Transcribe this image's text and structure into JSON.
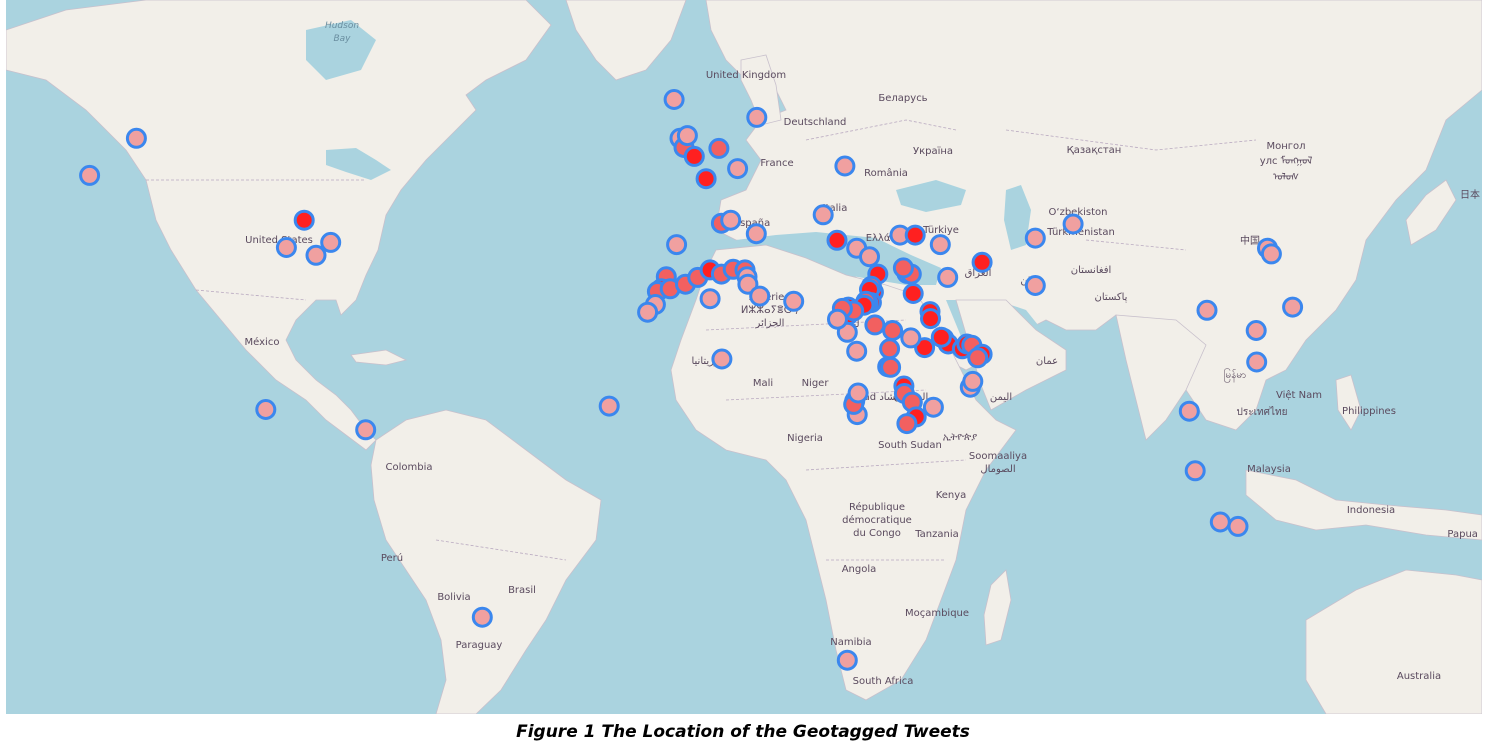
{
  "caption": "Figure 1 The Location of the Geotagged Tweets",
  "colors": {
    "ocean": "#aad3df",
    "land": "#f2efe9",
    "marker_stroke": "#3b87ee",
    "marker_fill_light": "#f0a0a0",
    "marker_fill_dense": "#ff2020"
  },
  "country_labels": [
    {
      "id": "united-states",
      "text": "United States"
    },
    {
      "id": "mexico",
      "text": "México"
    },
    {
      "id": "colombia",
      "text": "Colombia"
    },
    {
      "id": "peru",
      "text": "Perú"
    },
    {
      "id": "bolivia",
      "text": "Bolivia"
    },
    {
      "id": "brasil",
      "text": "Brasil"
    },
    {
      "id": "paraguay",
      "text": "Paraguay"
    },
    {
      "id": "united-kingdom",
      "text": "United Kingdom"
    },
    {
      "id": "deutschland",
      "text": "Deutschland"
    },
    {
      "id": "france",
      "text": "France"
    },
    {
      "id": "espana",
      "text": "España"
    },
    {
      "id": "italia",
      "text": "Italia"
    },
    {
      "id": "ellas",
      "text": "Ελλάς"
    },
    {
      "id": "romania",
      "text": "România"
    },
    {
      "id": "belarus",
      "text": "Беларусь"
    },
    {
      "id": "ukraina",
      "text": "Україна"
    },
    {
      "id": "turkiye",
      "text": "Türkiye"
    },
    {
      "id": "kazakhstan",
      "text": "Қазақстан"
    },
    {
      "id": "uzbekiston",
      "text": "O‘zbekiston"
    },
    {
      "id": "turkmenistan",
      "text": "Türkmenistan"
    },
    {
      "id": "mongol",
      "text": "Монгол"
    },
    {
      "id": "mongol-2",
      "text": "улс ᠮᠣᠩᠭᠣᠯ"
    },
    {
      "id": "mongol-3",
      "text": "ᠤᠯᠤᠰ"
    },
    {
      "id": "nihon",
      "text": "日本"
    },
    {
      "id": "zhongguo",
      "text": "中国"
    },
    {
      "id": "afghanistan",
      "text": "افغانستان"
    },
    {
      "id": "iran",
      "text": "ایران"
    },
    {
      "id": "pakistan",
      "text": "پاکستان"
    },
    {
      "id": "algerie",
      "text": "Algérie /"
    },
    {
      "id": "algerie-2",
      "text": "ⵍⵣⵣⴰⵢⴻⵔ /"
    },
    {
      "id": "algerie-3",
      "text": "الجزائر"
    },
    {
      "id": "libya",
      "text": "ليبيا"
    },
    {
      "id": "mauritania",
      "text": "موريتانيا"
    },
    {
      "id": "mali",
      "text": "Mali"
    },
    {
      "id": "niger",
      "text": "Niger"
    },
    {
      "id": "tchad",
      "text": "Tchad تشاد"
    },
    {
      "id": "sudan",
      "text": "السودان"
    },
    {
      "id": "nigeria",
      "text": "Nigeria"
    },
    {
      "id": "south-sudan",
      "text": "South Sudan"
    },
    {
      "id": "ethiopia",
      "text": "ኢትዮጵያ"
    },
    {
      "id": "somaaliya",
      "text": "Soomaaliya"
    },
    {
      "id": "somaaliya-2",
      "text": "الصومال"
    },
    {
      "id": "kenya",
      "text": "Kenya"
    },
    {
      "id": "rdc",
      "text": "République"
    },
    {
      "id": "rdc-2",
      "text": "démocratique"
    },
    {
      "id": "rdc-3",
      "text": "du Congo"
    },
    {
      "id": "tanzania",
      "text": "Tanzania"
    },
    {
      "id": "angola",
      "text": "Angola"
    },
    {
      "id": "mocambique",
      "text": "Moçambique"
    },
    {
      "id": "namibia",
      "text": "Namibia"
    },
    {
      "id": "south-africa",
      "text": "South Africa"
    },
    {
      "id": "myanmar",
      "text": "မြန်မာ"
    },
    {
      "id": "viet-nam",
      "text": "Việt Nam"
    },
    {
      "id": "thailand",
      "text": "ประเทศไทย"
    },
    {
      "id": "philippines",
      "text": "Philippines"
    },
    {
      "id": "malaysia",
      "text": "Malaysia"
    },
    {
      "id": "indonesia",
      "text": "Indonesia"
    },
    {
      "id": "papua",
      "text": "Papua N"
    },
    {
      "id": "australia",
      "text": "Australia"
    },
    {
      "id": "hudson-bay",
      "text": "Hudson"
    },
    {
      "id": "hudson-bay-2",
      "text": "Bay"
    },
    {
      "id": "iraq",
      "text": "العراق"
    },
    {
      "id": "oman",
      "text": "عمان"
    },
    {
      "id": "yemen",
      "text": "اليمن"
    }
  ],
  "tweet_markers": [
    {
      "lon": -123.0,
      "lat": 49.3,
      "density": "single"
    },
    {
      "lon": -113.5,
      "lat": 53.5,
      "density": "single"
    },
    {
      "lon": -79.4,
      "lat": 43.7,
      "density": "dense"
    },
    {
      "lon": -83.0,
      "lat": 40.0,
      "density": "single"
    },
    {
      "lon": -74.0,
      "lat": 40.7,
      "density": "single"
    },
    {
      "lon": -77.0,
      "lat": 38.9,
      "density": "single"
    },
    {
      "lon": -87.2,
      "lat": 14.1,
      "density": "single"
    },
    {
      "lon": -66.9,
      "lat": 10.5,
      "density": "single"
    },
    {
      "lon": -43.2,
      "lat": -22.9,
      "density": "single"
    },
    {
      "lon": -17.4,
      "lat": 14.7,
      "density": "single"
    },
    {
      "lon": -4.2,
      "lat": 57.5,
      "density": "single"
    },
    {
      "lon": -3.0,
      "lat": 53.5,
      "density": "single"
    },
    {
      "lon": -2.2,
      "lat": 52.5,
      "density": "medium"
    },
    {
      "lon": -1.5,
      "lat": 53.8,
      "density": "single"
    },
    {
      "lon": -0.1,
      "lat": 51.5,
      "density": "dense"
    },
    {
      "lon": 4.9,
      "lat": 52.4,
      "density": "medium"
    },
    {
      "lon": 2.3,
      "lat": 48.9,
      "density": "dense"
    },
    {
      "lon": 8.7,
      "lat": 50.1,
      "density": "single"
    },
    {
      "lon": 12.6,
      "lat": 55.7,
      "density": "single"
    },
    {
      "lon": 5.4,
      "lat": 43.3,
      "density": "medium"
    },
    {
      "lon": 7.3,
      "lat": 43.7,
      "density": "single"
    },
    {
      "lon": 12.5,
      "lat": 41.9,
      "density": "single"
    },
    {
      "lon": 26.1,
      "lat": 44.4,
      "density": "single"
    },
    {
      "lon": 30.5,
      "lat": 50.4,
      "density": "single"
    },
    {
      "lon": -3.7,
      "lat": 40.4,
      "density": "single"
    },
    {
      "lon": -5.8,
      "lat": 35.8,
      "density": "medium"
    },
    {
      "lon": -6.8,
      "lat": 34.0,
      "density": "dense"
    },
    {
      "lon": -7.6,
      "lat": 33.6,
      "density": "medium"
    },
    {
      "lon": -8.0,
      "lat": 31.6,
      "density": "single"
    },
    {
      "lon": -9.6,
      "lat": 30.4,
      "density": "single"
    },
    {
      "lon": -5.0,
      "lat": 34.0,
      "density": "medium"
    },
    {
      "lon": -1.9,
      "lat": 34.7,
      "density": "medium"
    },
    {
      "lon": 0.6,
      "lat": 35.7,
      "density": "medium"
    },
    {
      "lon": 3.1,
      "lat": 36.8,
      "density": "dense"
    },
    {
      "lon": 5.4,
      "lat": 36.2,
      "density": "medium"
    },
    {
      "lon": 7.8,
      "lat": 36.9,
      "density": "medium"
    },
    {
      "lon": 10.2,
      "lat": 36.8,
      "density": "medium"
    },
    {
      "lon": 10.6,
      "lat": 35.8,
      "density": "single"
    },
    {
      "lon": 10.8,
      "lat": 34.7,
      "density": "single"
    },
    {
      "lon": 13.2,
      "lat": 32.9,
      "density": "single"
    },
    {
      "lon": 20.1,
      "lat": 32.1,
      "density": "single"
    },
    {
      "lon": 3.1,
      "lat": 32.5,
      "density": "single"
    },
    {
      "lon": 5.5,
      "lat": 22.8,
      "density": "single"
    },
    {
      "lon": 28.9,
      "lat": 41.0,
      "density": "dense"
    },
    {
      "lon": 32.9,
      "lat": 39.9,
      "density": "single"
    },
    {
      "lon": 35.5,
      "lat": 38.7,
      "density": "single"
    },
    {
      "lon": 41.7,
      "lat": 41.7,
      "density": "single"
    },
    {
      "lon": 44.8,
      "lat": 41.7,
      "density": "dense"
    },
    {
      "lon": 49.9,
      "lat": 40.4,
      "density": "single"
    },
    {
      "lon": 58.4,
      "lat": 37.9,
      "density": "dense"
    },
    {
      "lon": 69.2,
      "lat": 41.3,
      "density": "single"
    },
    {
      "lon": 69.2,
      "lat": 34.5,
      "density": "single"
    },
    {
      "lon": 37.2,
      "lat": 36.2,
      "density": "dense"
    },
    {
      "lon": 36.3,
      "lat": 33.5,
      "density": "dense"
    },
    {
      "lon": 35.9,
      "lat": 34.4,
      "density": "medium"
    },
    {
      "lon": 35.5,
      "lat": 33.9,
      "density": "dense"
    },
    {
      "lon": 35.9,
      "lat": 31.9,
      "density": "dense"
    },
    {
      "lon": 35.2,
      "lat": 31.8,
      "density": "dense"
    },
    {
      "lon": 34.8,
      "lat": 32.1,
      "density": "medium"
    },
    {
      "lon": 34.4,
      "lat": 31.5,
      "density": "dense"
    },
    {
      "lon": 31.2,
      "lat": 31.2,
      "density": "dense"
    },
    {
      "lon": 31.2,
      "lat": 30.0,
      "density": "dense"
    },
    {
      "lon": 32.3,
      "lat": 30.6,
      "density": "medium"
    },
    {
      "lon": 30.0,
      "lat": 31.0,
      "density": "medium"
    },
    {
      "lon": 31.0,
      "lat": 27.2,
      "density": "single"
    },
    {
      "lon": 32.9,
      "lat": 24.1,
      "density": "single"
    },
    {
      "lon": 29.0,
      "lat": 29.3,
      "density": "single"
    },
    {
      "lon": 44.4,
      "lat": 33.3,
      "density": "dense"
    },
    {
      "lon": 43.1,
      "lat": 36.3,
      "density": "medium"
    },
    {
      "lon": 44.0,
      "lat": 36.2,
      "density": "medium"
    },
    {
      "lon": 42.4,
      "lat": 37.1,
      "density": "medium"
    },
    {
      "lon": 47.8,
      "lat": 30.5,
      "density": "dense"
    },
    {
      "lon": 47.9,
      "lat": 29.4,
      "density": "dense"
    },
    {
      "lon": 51.4,
      "lat": 35.7,
      "density": "single"
    },
    {
      "lon": 50.6,
      "lat": 26.2,
      "density": "dense"
    },
    {
      "lon": 51.5,
      "lat": 25.3,
      "density": "dense"
    },
    {
      "lon": 54.4,
      "lat": 24.5,
      "density": "dense"
    },
    {
      "lon": 55.3,
      "lat": 25.3,
      "density": "dense"
    },
    {
      "lon": 56.3,
      "lat": 25.1,
      "density": "medium"
    },
    {
      "lon": 58.4,
      "lat": 23.6,
      "density": "dense"
    },
    {
      "lon": 57.5,
      "lat": 23.0,
      "density": "medium"
    },
    {
      "lon": 46.7,
      "lat": 24.7,
      "density": "dense"
    },
    {
      "lon": 50.1,
      "lat": 26.4,
      "density": "dense"
    },
    {
      "lon": 39.2,
      "lat": 21.5,
      "density": "dense"
    },
    {
      "lon": 39.8,
      "lat": 21.4,
      "density": "medium"
    },
    {
      "lon": 39.6,
      "lat": 24.5,
      "density": "medium"
    },
    {
      "lon": 36.6,
      "lat": 28.4,
      "density": "medium"
    },
    {
      "lon": 40.2,
      "lat": 27.5,
      "density": "medium"
    },
    {
      "lon": 43.9,
      "lat": 26.3,
      "density": "single"
    },
    {
      "lon": 42.5,
      "lat": 18.2,
      "density": "dense"
    },
    {
      "lon": 42.6,
      "lat": 16.9,
      "density": "medium"
    },
    {
      "lon": 44.2,
      "lat": 15.4,
      "density": "medium"
    },
    {
      "lon": 45.0,
      "lat": 12.8,
      "density": "dense"
    },
    {
      "lon": 48.5,
      "lat": 14.5,
      "density": "single"
    },
    {
      "lon": 43.1,
      "lat": 11.6,
      "density": "medium"
    },
    {
      "lon": 32.5,
      "lat": 15.6,
      "density": "medium"
    },
    {
      "lon": 33.0,
      "lat": 13.2,
      "density": "single"
    },
    {
      "lon": 32.3,
      "lat": 15.0,
      "density": "medium"
    },
    {
      "lon": 33.2,
      "lat": 17.0,
      "density": "single"
    },
    {
      "lon": 56.0,
      "lat": 18.0,
      "density": "single"
    },
    {
      "lon": 56.5,
      "lat": 19.0,
      "density": "single"
    },
    {
      "lon": 31.0,
      "lat": -29.9,
      "density": "single"
    },
    {
      "lon": 76.9,
      "lat": 43.2,
      "density": "single"
    },
    {
      "lon": 116.4,
      "lat": 39.9,
      "density": "single"
    },
    {
      "lon": 117.2,
      "lat": 39.1,
      "density": "single"
    },
    {
      "lon": 104.1,
      "lat": 30.7,
      "density": "single"
    },
    {
      "lon": 121.5,
      "lat": 31.2,
      "density": "single"
    },
    {
      "lon": 114.2,
      "lat": 22.3,
      "density": "single"
    },
    {
      "lon": 114.1,
      "lat": 27.5,
      "density": "single"
    },
    {
      "lon": 100.5,
      "lat": 13.8,
      "density": "single"
    },
    {
      "lon": 101.7,
      "lat": 3.1,
      "density": "single"
    },
    {
      "lon": 106.8,
      "lat": -6.2,
      "density": "single"
    },
    {
      "lon": 110.4,
      "lat": -7.0,
      "density": "single"
    }
  ]
}
